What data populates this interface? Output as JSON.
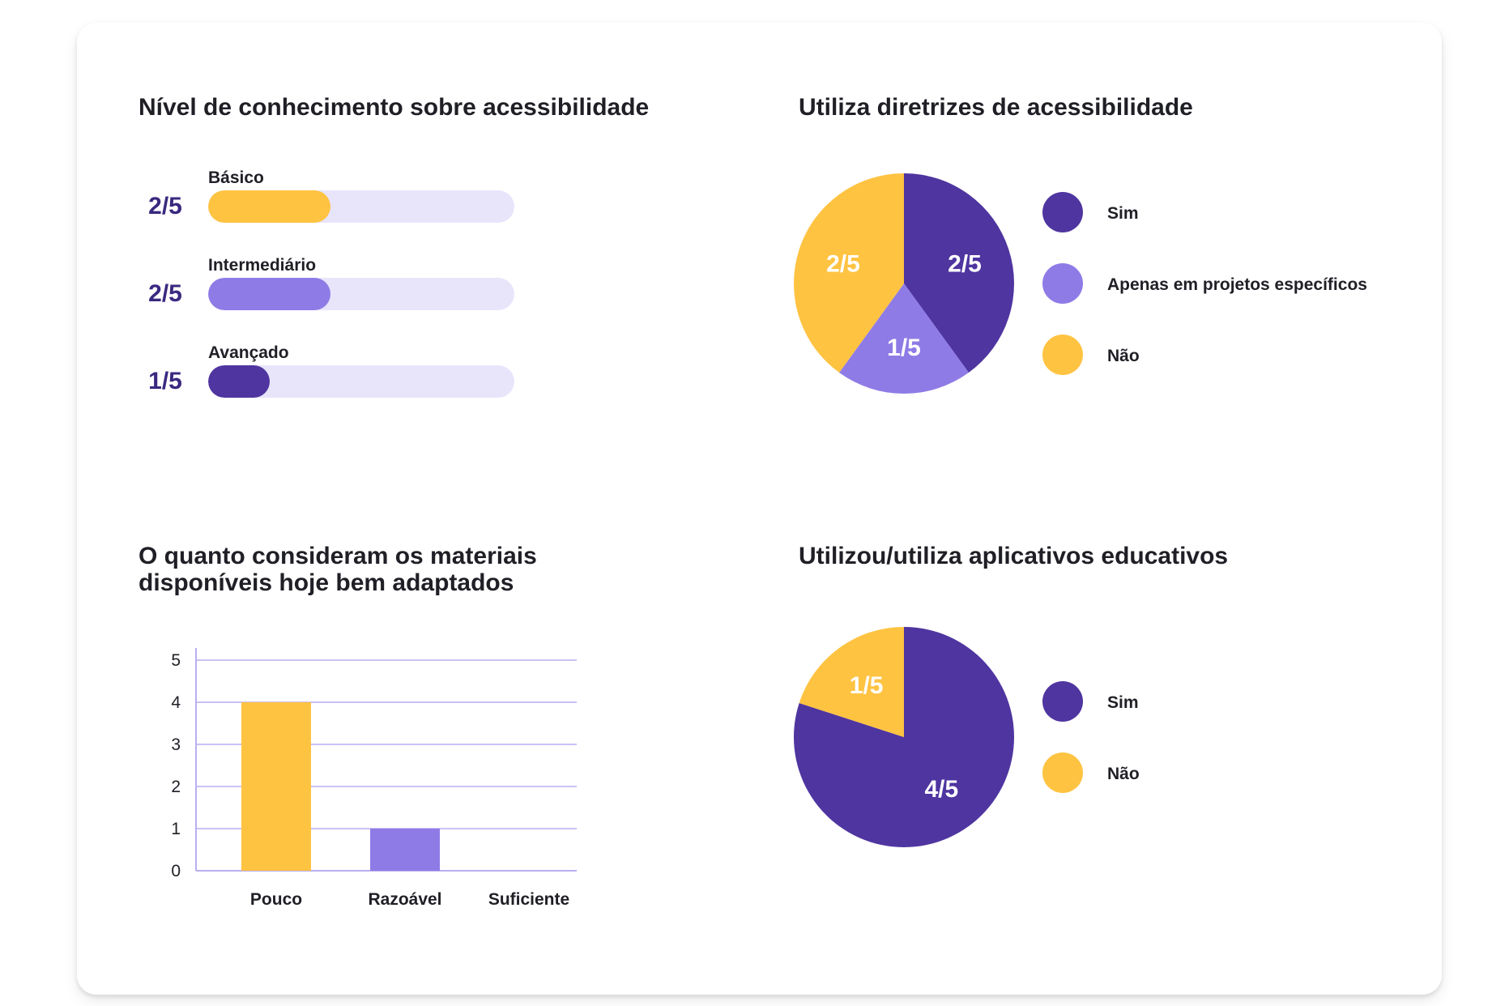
{
  "colors": {
    "purple_dark": "#4f35a0",
    "purple_light": "#8f7be6",
    "yellow": "#ffc342",
    "track": "#e8e5fb",
    "gridline": "#b9aef0",
    "value_text": "#3a2880"
  },
  "chart_data": [
    {
      "type": "bar",
      "orientation": "horizontal-progress",
      "title": "Nível de conhecimento sobre acessibilidade",
      "categories": [
        "Básico",
        "Intermediário",
        "Avançado"
      ],
      "values": [
        2,
        2,
        1
      ],
      "total": 5,
      "value_labels": [
        "2/5",
        "2/5",
        "1/5"
      ],
      "colors": [
        "#ffc342",
        "#8f7be6",
        "#4f35a0"
      ]
    },
    {
      "type": "pie",
      "title": "Utiliza diretrizes de acessibilidade",
      "categories": [
        "Sim",
        "Apenas em projetos específicos",
        "Não"
      ],
      "values": [
        2,
        1,
        2
      ],
      "value_labels": [
        "2/5",
        "1/5",
        "2/5"
      ],
      "colors": [
        "#4f35a0",
        "#8f7be6",
        "#ffc342"
      ],
      "legend": "right"
    },
    {
      "type": "bar",
      "title": "O quanto consideram os materiais disponíveis hoje bem adaptados",
      "categories": [
        "Pouco",
        "Razoável",
        "Suficiente"
      ],
      "values": [
        4,
        1,
        0
      ],
      "colors": [
        "#ffc342",
        "#8f7be6",
        "#4f35a0"
      ],
      "yticks": [
        "0",
        "1",
        "2",
        "3",
        "4",
        "5"
      ],
      "ylim": [
        0,
        5
      ],
      "grid": true
    },
    {
      "type": "pie",
      "title": "Utilizou/utiliza aplicativos educativos",
      "categories": [
        "Sim",
        "Não"
      ],
      "values": [
        4,
        1
      ],
      "value_labels": [
        "4/5",
        "1/5"
      ],
      "colors": [
        "#4f35a0",
        "#ffc342"
      ],
      "legend": "right"
    }
  ]
}
